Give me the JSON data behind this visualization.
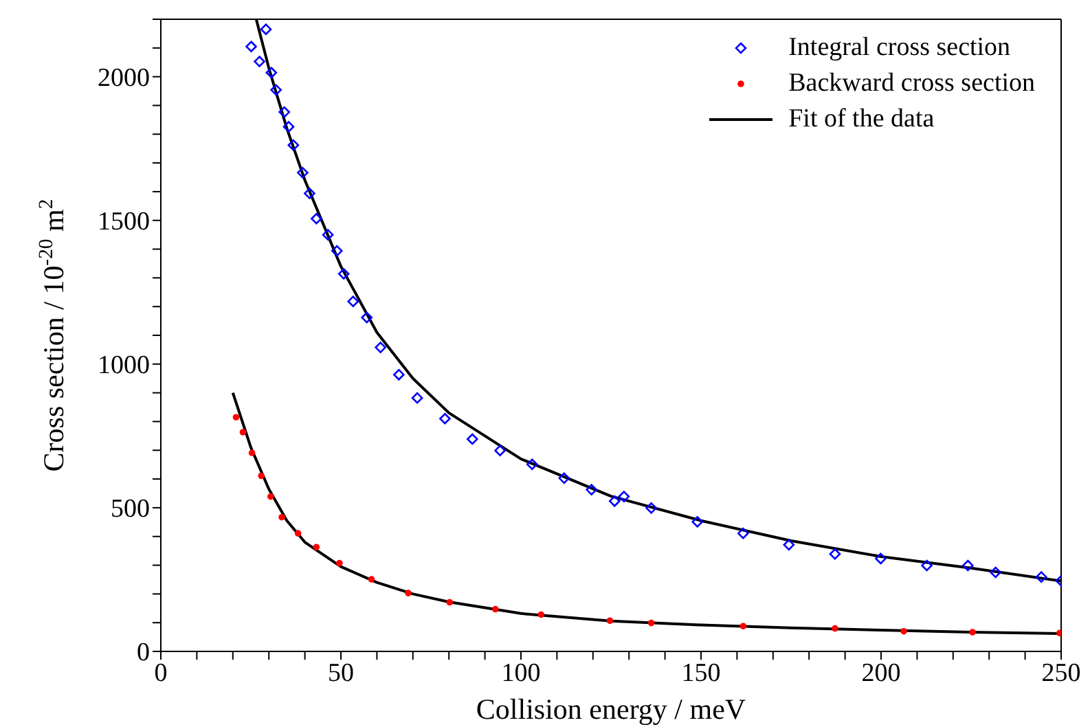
{
  "chart_data": {
    "type": "scatter",
    "xlabel": "Collision energy / meV",
    "ylabel": "Cross section / 10$^{-20}$ m$^{2}$",
    "xlim": [
      0,
      250
    ],
    "ylim": [
      0,
      2200
    ],
    "xticks": [
      0,
      {
        "value": 10,
        "label": null
      },
      {
        "value": 20,
        "label": null
      },
      {
        "value": 30,
        "label": null
      },
      {
        "value": 40,
        "label": null
      },
      50,
      {
        "value": 60,
        "label": null
      },
      {
        "value": 70,
        "label": null
      },
      {
        "value": 80,
        "label": null
      },
      {
        "value": 90,
        "label": null
      },
      100,
      {
        "value": 110,
        "label": null
      },
      {
        "value": 120,
        "label": null
      },
      {
        "value": 130,
        "label": null
      },
      {
        "value": 140,
        "label": null
      },
      150,
      {
        "value": 160,
        "label": null
      },
      {
        "value": 170,
        "label": null
      },
      {
        "value": 180,
        "label": null
      },
      {
        "value": 190,
        "label": null
      },
      200,
      {
        "value": 210,
        "label": null
      },
      {
        "value": 220,
        "label": null
      },
      {
        "value": 230,
        "label": null
      },
      {
        "value": 240,
        "label": null
      },
      250
    ],
    "yticks": [
      0,
      {
        "value": 100,
        "label": null
      },
      {
        "value": 200,
        "label": null
      },
      {
        "value": 300,
        "label": null
      },
      {
        "value": 400,
        "label": null
      },
      500,
      {
        "value": 600,
        "label": null
      },
      {
        "value": 700,
        "label": null
      },
      {
        "value": 800,
        "label": null
      },
      {
        "value": 900,
        "label": null
      },
      1000,
      {
        "value": 1100,
        "label": null
      },
      {
        "value": 1200,
        "label": null
      },
      {
        "value": 1300,
        "label": null
      },
      {
        "value": 1400,
        "label": null
      },
      1500,
      {
        "value": 1600,
        "label": null
      },
      {
        "value": 1700,
        "label": null
      },
      {
        "value": 1800,
        "label": null
      },
      {
        "value": 1900,
        "label": null
      },
      2000,
      {
        "value": 2100,
        "label": null
      },
      {
        "value": 2200,
        "label": null
      }
    ],
    "legend": "top right",
    "series": [
      {
        "name": "Integral cross section",
        "marker": "diamond",
        "color": "#0000ff",
        "x": [
          25.1,
          27.4,
          29.2,
          30.7,
          32,
          34.3,
          35.5,
          36.8,
          39.4,
          41.3,
          43.2,
          46.4,
          48.9,
          50.8,
          53.4,
          57.2,
          61,
          66.1,
          71.2,
          78.9,
          86.5,
          94.2,
          103.1,
          112,
          119.6,
          126,
          128.6,
          136.2,
          149,
          161.7,
          174.4,
          187.2,
          199.9,
          212.7,
          224.1,
          231.8,
          244.5,
          250
        ],
        "values": [
          2105,
          2053,
          2165,
          2014,
          1954,
          1877,
          1826,
          1762,
          1666,
          1594,
          1506,
          1450,
          1394,
          1314,
          1218,
          1162,
          1058,
          963,
          882,
          810,
          739,
          699,
          651,
          603,
          563,
          523,
          539,
          499,
          451,
          411,
          371,
          339,
          323,
          299,
          299,
          275,
          259,
          246
        ]
      },
      {
        "name": "Backward cross section",
        "marker": "circle",
        "color": "#ff0000",
        "x": [
          20.9,
          22.8,
          25.3,
          27.9,
          30.5,
          33.6,
          38.1,
          43.2,
          49.6,
          58.5,
          68.7,
          80.2,
          92.9,
          105.6,
          124.7,
          136.2,
          161.7,
          187.2,
          206.3,
          225.4,
          249.6
        ],
        "values": [
          815,
          763,
          691,
          611,
          539,
          467,
          411,
          363,
          307,
          251,
          203,
          171,
          147,
          128,
          107,
          99,
          88,
          80,
          70,
          67,
          64
        ]
      },
      {
        "name": "Fit of the data",
        "type": "line",
        "marker": "none",
        "line_style": "solid",
        "color": "#000000",
        "x": [
          26.5,
          30,
          35,
          40,
          50,
          60,
          70,
          80,
          100,
          125,
          150,
          175,
          200,
          225,
          250
        ],
        "values": [
          2200,
          2030,
          1820,
          1640,
          1340,
          1110,
          950,
          830,
          670,
          540,
          455,
          385,
          330,
          290,
          245
        ]
      },
      {
        "type": "line",
        "marker": "none",
        "line_style": "solid",
        "color": "#000000",
        "x": [
          20,
          25,
          30,
          35,
          40,
          50,
          60,
          70,
          80,
          100,
          125,
          150,
          175,
          200,
          225,
          250
        ],
        "values": [
          900,
          710,
          565,
          455,
          380,
          295,
          240,
          200,
          172,
          132,
          106,
          92,
          82,
          74,
          67,
          62
        ]
      }
    ]
  }
}
